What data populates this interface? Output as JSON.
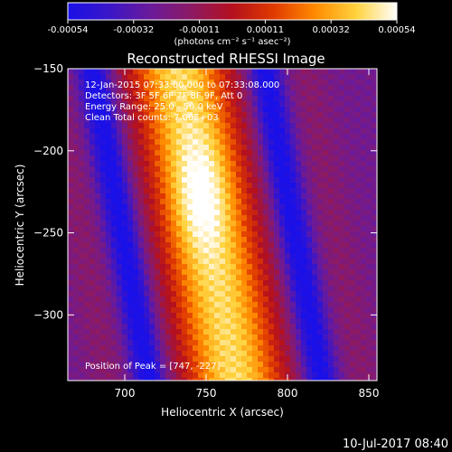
{
  "colorbar": {
    "tick_labels": [
      "-0.00054",
      "-0.00032",
      "-0.00011",
      "0.00011",
      "0.00032",
      "0.00054"
    ],
    "units_label": "(photons cm⁻² s⁻¹ asec⁻²)",
    "range": [
      -0.00054,
      0.00054
    ],
    "stops": [
      "#1a10e8",
      "#3a16c8",
      "#6a1a9a",
      "#8c1a64",
      "#b4101e",
      "#e03a00",
      "#ff8a00",
      "#ffd23c",
      "#ffffff"
    ]
  },
  "chart_data": {
    "type": "heatmap",
    "title": "Reconstructed RHESSI Image",
    "xlabel": "Heliocentric X (arcsec)",
    "ylabel": "Heliocentric Y (arcsec)",
    "xlim": [
      665,
      855
    ],
    "ylim": [
      -340,
      -150
    ],
    "xticks": [
      700,
      750,
      800,
      850
    ],
    "yticks": [
      -150,
      -200,
      -250,
      -300
    ],
    "annotations": {
      "time": "12-Jan-2015 07:33:00.000 to 07:33:08.000",
      "detectors": "Detectors: 3F 5F 6F 7F 8F 9F, Att 0",
      "energy": "Energy Range: 25.0 - 50.0 keV",
      "method": "Clean    Total counts: 7.00E+03",
      "peak": "Position of Peak = [747, -227]"
    },
    "peak": {
      "x": 747,
      "y": -227
    },
    "band": {
      "description": "bright band oriented roughly N-S, drifting right with decreasing Y",
      "center_x_at_top": 733,
      "center_x_at_bottom": 768,
      "half_width_arcsec": 30
    }
  },
  "footer": {
    "timestamp": "10-Jul-2017 08:40"
  }
}
